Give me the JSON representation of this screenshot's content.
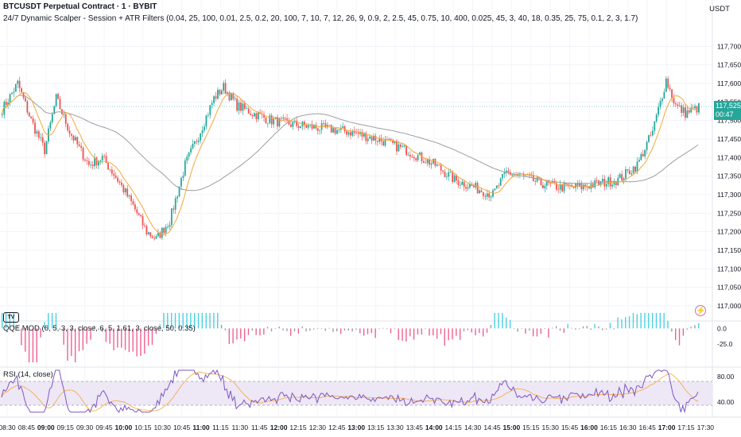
{
  "header": {
    "symbol_title": "BTCUSDT Perpetual Contract · 1 · BYBIT",
    "indicator_title": "24/7 Dynamic Scalper - Session + ATR Filters (0.04, 25, 100, 0.01, 2.5, 0.2, 20, 100, 7, 10, 7, 12, 26, 9, 0.9, 2, 2.5, 45, 0.75, 10, 400, 0.025, 45, 3, 40, 18, 0.35, 25, 75, 0.1, 2, 3, 1.7)"
  },
  "price_axis": {
    "currency": "USDT",
    "ticks": [
      "117,700.0",
      "117,650.0",
      "117,600.0",
      "117,550.0",
      "117,500.0",
      "117,450.0",
      "117,400.0",
      "117,350.0",
      "117,300.0",
      "117,250.0",
      "117,200.0",
      "117,150.0",
      "117,100.0",
      "117,050.0",
      "117,000.0"
    ],
    "last_price": "117,525.0",
    "countdown": "00:47"
  },
  "qqe_pane": {
    "label": "QQE MOD (6, 5, 3, 3, close, 6, 5, 1.61, 3, close, 50, 0.35)",
    "ticks": [
      "0.0",
      "-25.0"
    ]
  },
  "rsi_pane": {
    "label": "RSI (14, close)",
    "ticks": [
      "80.00",
      "40.00"
    ]
  },
  "time_axis": {
    "ticks": [
      "08:30",
      "08:45",
      "09:00",
      "09:15",
      "09:30",
      "09:45",
      "10:00",
      "10:15",
      "10:30",
      "10:45",
      "11:00",
      "11:15",
      "11:30",
      "11:45",
      "12:00",
      "12:15",
      "12:30",
      "12:45",
      "13:00",
      "13:15",
      "13:30",
      "13:45",
      "14:00",
      "14:15",
      "14:30",
      "14:45",
      "15:00",
      "15:15",
      "15:30",
      "15:45",
      "16:00",
      "16:15",
      "16:30",
      "16:45",
      "17:00",
      "17:15",
      "17:30"
    ],
    "bold_ticks": [
      "09:00",
      "10:00",
      "11:00",
      "12:00",
      "13:00",
      "14:00",
      "15:00",
      "16:00",
      "17:00"
    ]
  },
  "icons": {
    "logo": "tradingview-logo-icon",
    "alert": "lightning-icon"
  },
  "colors": {
    "up": "#26a69a",
    "down": "#ef5350",
    "ma_fast": "#f7a735",
    "ma_slow": "#9e9e9e",
    "qqe_up": "#4dd0e1",
    "qqe_down": "#f06292",
    "qqe_neutral": "#9e9e9e",
    "rsi": "#7e57c2",
    "rsi_ma": "#f7a735",
    "rsi_band": "#ede7f6"
  },
  "chart_data": {
    "type": "candlestick",
    "price_path": [
      [
        0,
        117530
      ],
      [
        8,
        117600
      ],
      [
        15,
        117500
      ],
      [
        22,
        117420
      ],
      [
        28,
        117560
      ],
      [
        35,
        117470
      ],
      [
        45,
        117380
      ],
      [
        52,
        117400
      ],
      [
        60,
        117340
      ],
      [
        68,
        117270
      ],
      [
        75,
        117200
      ],
      [
        80,
        117180
      ],
      [
        87,
        117230
      ],
      [
        95,
        117380
      ],
      [
        102,
        117460
      ],
      [
        110,
        117560
      ],
      [
        115,
        117590
      ],
      [
        122,
        117540
      ],
      [
        130,
        117520
      ],
      [
        140,
        117500
      ],
      [
        150,
        117490
      ],
      [
        165,
        117480
      ],
      [
        180,
        117470
      ],
      [
        195,
        117450
      ],
      [
        210,
        117420
      ],
      [
        225,
        117380
      ],
      [
        235,
        117340
      ],
      [
        245,
        117320
      ],
      [
        255,
        117300
      ],
      [
        262,
        117360
      ],
      [
        270,
        117350
      ],
      [
        280,
        117330
      ],
      [
        290,
        117320
      ],
      [
        300,
        117320
      ],
      [
        310,
        117330
      ],
      [
        320,
        117340
      ],
      [
        330,
        117380
      ],
      [
        338,
        117470
      ],
      [
        345,
        117610
      ],
      [
        350,
        117540
      ],
      [
        355,
        117520
      ],
      [
        362,
        117535
      ]
    ],
    "price_range": [
      117000,
      117750
    ],
    "qqe_range": [
      -60,
      30
    ],
    "rsi_range": [
      20,
      95
    ]
  }
}
